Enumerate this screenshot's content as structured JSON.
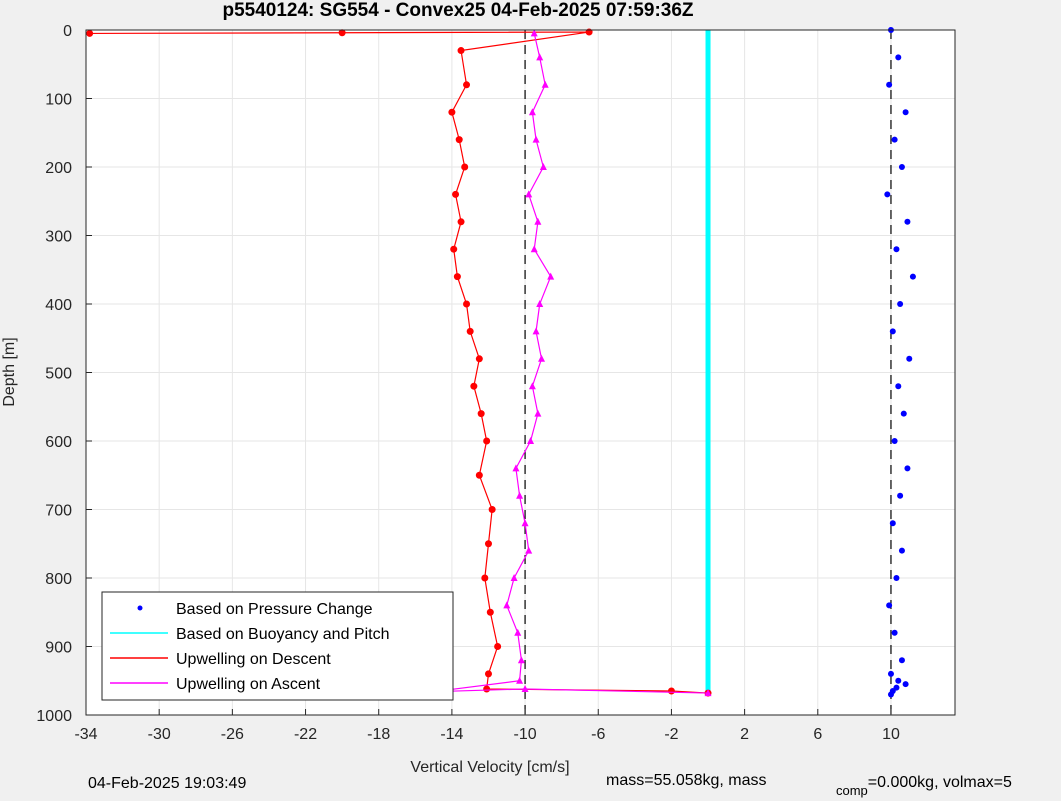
{
  "footer": {
    "timestamp": "04-Feb-2025 19:03:49",
    "mass_text": "mass=55.058kg, mass",
    "comp_subscript": "comp",
    "comp_text": "=0.000kg, volmax=5"
  },
  "chart_data": {
    "type": "line",
    "title": "p5540124: SG554 - Convex25 04-Feb-2025 07:59:36Z",
    "xlabel": "Vertical Velocity [cm/s]",
    "ylabel": "Depth [m]",
    "xlim": [
      -34,
      13.5
    ],
    "ylim": [
      0,
      1000
    ],
    "y_reversed": true,
    "grid": true,
    "xticks": [
      -34,
      -30,
      -26,
      -22,
      -18,
      -14,
      -10,
      -6,
      -2,
      2,
      6,
      10
    ],
    "yticks": [
      0,
      100,
      200,
      300,
      400,
      500,
      600,
      700,
      800,
      900,
      1000
    ],
    "legend_position": "bottom-left",
    "colors": {
      "pressure": "#0000ff",
      "buoyancy": "#00ffff",
      "descent": "#ff0000",
      "ascent": "#ff00ff",
      "reference": "#000000"
    },
    "series": [
      {
        "name": "Based on Pressure Change",
        "style": "dots",
        "x": [
          10,
          10.4,
          9.9,
          10.8,
          10.2,
          10.6,
          9.8,
          10.9,
          10.3,
          11.2,
          10.5,
          10.1,
          11.0,
          10.4,
          10.7,
          10.2,
          10.9,
          10.5,
          10.1,
          10.6,
          10.3,
          9.9,
          10.2,
          10.6,
          10.0,
          10.4,
          10.8,
          10.3,
          10.1,
          10.0
        ],
        "y": [
          0,
          40,
          80,
          120,
          160,
          200,
          240,
          280,
          320,
          360,
          400,
          440,
          480,
          520,
          560,
          600,
          640,
          680,
          720,
          760,
          800,
          840,
          880,
          920,
          940,
          950,
          955,
          960,
          965,
          970
        ]
      },
      {
        "name": "Based on Buoyancy and Pitch",
        "style": "line",
        "x": [
          0,
          0
        ],
        "y": [
          0,
          970
        ]
      },
      {
        "name": "Upwelling on Descent",
        "style": "line-dots",
        "x": [
          -33.8,
          -20,
          -6.5,
          -13.5,
          -13.2,
          -14,
          -13.6,
          -13.3,
          -13.8,
          -13.5,
          -13.9,
          -13.7,
          -13.2,
          -13.0,
          -12.5,
          -12.8,
          -12.4,
          -12.1,
          -12.5,
          -11.8,
          -12.0,
          -12.2,
          -11.9,
          -11.5,
          -12.0,
          -12.1,
          -2,
          0
        ],
        "y": [
          5,
          4,
          3,
          30,
          80,
          120,
          160,
          200,
          240,
          280,
          320,
          360,
          400,
          440,
          480,
          520,
          560,
          600,
          650,
          700,
          750,
          800,
          850,
          900,
          940,
          962,
          965,
          968
        ]
      },
      {
        "name": "Upwelling on Ascent",
        "style": "line-triangles",
        "x": [
          -9.5,
          -9.2,
          -8.9,
          -9.6,
          -9.4,
          -9.0,
          -9.8,
          -9.3,
          -9.5,
          -8.6,
          -9.2,
          -9.4,
          -9.1,
          -9.6,
          -9.3,
          -9.7,
          -10.5,
          -10.3,
          -10.0,
          -9.8,
          -10.6,
          -11,
          -10.4,
          -10.2,
          -10.3,
          -15.0,
          -10,
          0
        ],
        "y": [
          5,
          40,
          80,
          120,
          160,
          200,
          240,
          280,
          320,
          360,
          400,
          440,
          480,
          520,
          560,
          600,
          640,
          680,
          720,
          760,
          800,
          840,
          880,
          920,
          950,
          966,
          962,
          968
        ]
      }
    ],
    "reference_lines_x": [
      -10,
      10
    ]
  }
}
